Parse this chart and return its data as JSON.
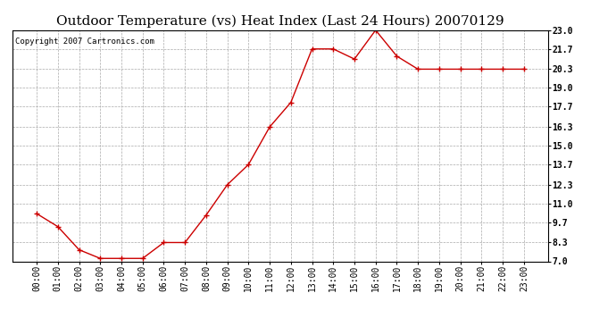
{
  "title": "Outdoor Temperature (vs) Heat Index (Last 24 Hours) 20070129",
  "copyright_text": "Copyright 2007 Cartronics.com",
  "x_labels": [
    "00:00",
    "01:00",
    "02:00",
    "03:00",
    "04:00",
    "05:00",
    "06:00",
    "07:00",
    "08:00",
    "09:00",
    "10:00",
    "11:00",
    "12:00",
    "13:00",
    "14:00",
    "15:00",
    "16:00",
    "17:00",
    "18:00",
    "19:00",
    "20:00",
    "21:00",
    "22:00",
    "23:00"
  ],
  "y_values": [
    10.3,
    9.4,
    7.8,
    7.2,
    7.2,
    7.2,
    8.3,
    8.3,
    10.2,
    12.3,
    13.7,
    16.3,
    18.0,
    21.7,
    21.7,
    21.0,
    23.0,
    21.2,
    20.3,
    20.3,
    20.3,
    20.3,
    20.3,
    20.3
  ],
  "line_color": "#cc0000",
  "marker": "+",
  "marker_size": 4,
  "marker_linewidth": 1.0,
  "line_width": 1.0,
  "background_color": "#ffffff",
  "plot_bg_color": "#ffffff",
  "grid_color": "#aaaaaa",
  "ylim": [
    7.0,
    23.0
  ],
  "yticks": [
    7.0,
    8.3,
    9.7,
    11.0,
    12.3,
    13.7,
    15.0,
    16.3,
    17.7,
    19.0,
    20.3,
    21.7,
    23.0
  ],
  "title_fontsize": 11,
  "tick_fontsize": 7,
  "copyright_fontsize": 6.5
}
